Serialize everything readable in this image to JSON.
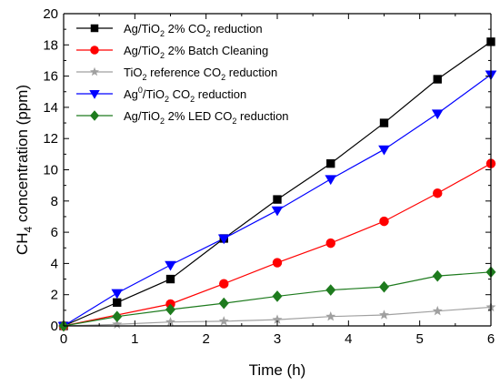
{
  "chart_data": {
    "type": "line",
    "xlabel": "Time (h)",
    "ylabel": {
      "prefix": "CH",
      "sub": "4",
      "suffix": " concentration (ppm)"
    },
    "xlim": [
      0,
      6
    ],
    "ylim": [
      0,
      20
    ],
    "xticks": [
      0,
      1,
      2,
      3,
      4,
      5,
      6
    ],
    "yticks": [
      0,
      2,
      4,
      6,
      8,
      10,
      12,
      14,
      16,
      18,
      20
    ],
    "xtick_labels": [
      "0",
      "1",
      "2",
      "3",
      "4",
      "5",
      "6"
    ],
    "ytick_labels": [
      "0",
      "2",
      "4",
      "6",
      "8",
      "10",
      "12",
      "14",
      "16",
      "18",
      "20"
    ],
    "grid": false,
    "legend_position": "top-left",
    "series": [
      {
        "legend": [
          {
            "t": "Ag/TiO"
          },
          {
            "t": "2",
            "sub": true
          },
          {
            "t": " 2% CO"
          },
          {
            "t": "2",
            "sub": true
          },
          {
            "t": " reduction"
          }
        ],
        "color": "#000000",
        "marker": "square",
        "x": [
          0,
          0.75,
          1.5,
          2.25,
          3,
          3.75,
          4.5,
          5.25,
          6
        ],
        "y": [
          0,
          1.5,
          3.0,
          5.6,
          8.1,
          10.4,
          13.0,
          15.8,
          18.2
        ]
      },
      {
        "legend": [
          {
            "t": "Ag/TiO"
          },
          {
            "t": "2",
            "sub": true
          },
          {
            "t": " 2% Batch Cleaning"
          }
        ],
        "color": "#ff0000",
        "marker": "circle",
        "x": [
          0,
          1.5,
          2.25,
          3,
          3.75,
          4.5,
          5.25,
          6
        ],
        "y": [
          0,
          1.4,
          2.7,
          4.05,
          5.3,
          6.7,
          8.5,
          10.4
        ]
      },
      {
        "legend": [
          {
            "t": "TiO"
          },
          {
            "t": "2",
            "sub": true
          },
          {
            "t": " reference CO"
          },
          {
            "t": "2",
            "sub": true
          },
          {
            "t": " reduction"
          }
        ],
        "color": "#a0a0a0",
        "marker": "star",
        "x": [
          0,
          0.75,
          1.5,
          2.25,
          3,
          3.75,
          4.5,
          5.25,
          6
        ],
        "y": [
          0,
          0.1,
          0.25,
          0.3,
          0.4,
          0.6,
          0.7,
          0.95,
          1.2
        ]
      },
      {
        "legend": [
          {
            "t": "Ag"
          },
          {
            "t": "0",
            "sup": true
          },
          {
            "t": "/TiO"
          },
          {
            "t": "2",
            "sub": true
          },
          {
            "t": "  CO"
          },
          {
            "t": "2",
            "sub": true
          },
          {
            "t": " reduction"
          }
        ],
        "color": "#0000ff",
        "marker": "triangle-down",
        "x": [
          0,
          0.75,
          1.5,
          2.25,
          3,
          3.75,
          4.5,
          5.25,
          6
        ],
        "y": [
          0,
          2.1,
          3.9,
          5.6,
          7.4,
          9.4,
          11.3,
          13.6,
          16.1
        ]
      },
      {
        "legend": [
          {
            "t": "Ag/TiO"
          },
          {
            "t": "2",
            "sub": true
          },
          {
            "t": " 2% LED CO"
          },
          {
            "t": "2",
            "sub": true
          },
          {
            "t": " reduction"
          }
        ],
        "color": "#1e7b1e",
        "marker": "diamond",
        "x": [
          0,
          0.75,
          1.5,
          2.25,
          3,
          3.75,
          4.5,
          5.25,
          6
        ],
        "y": [
          0,
          0.6,
          1.05,
          1.45,
          1.9,
          2.3,
          2.5,
          3.2,
          3.45
        ]
      }
    ]
  }
}
